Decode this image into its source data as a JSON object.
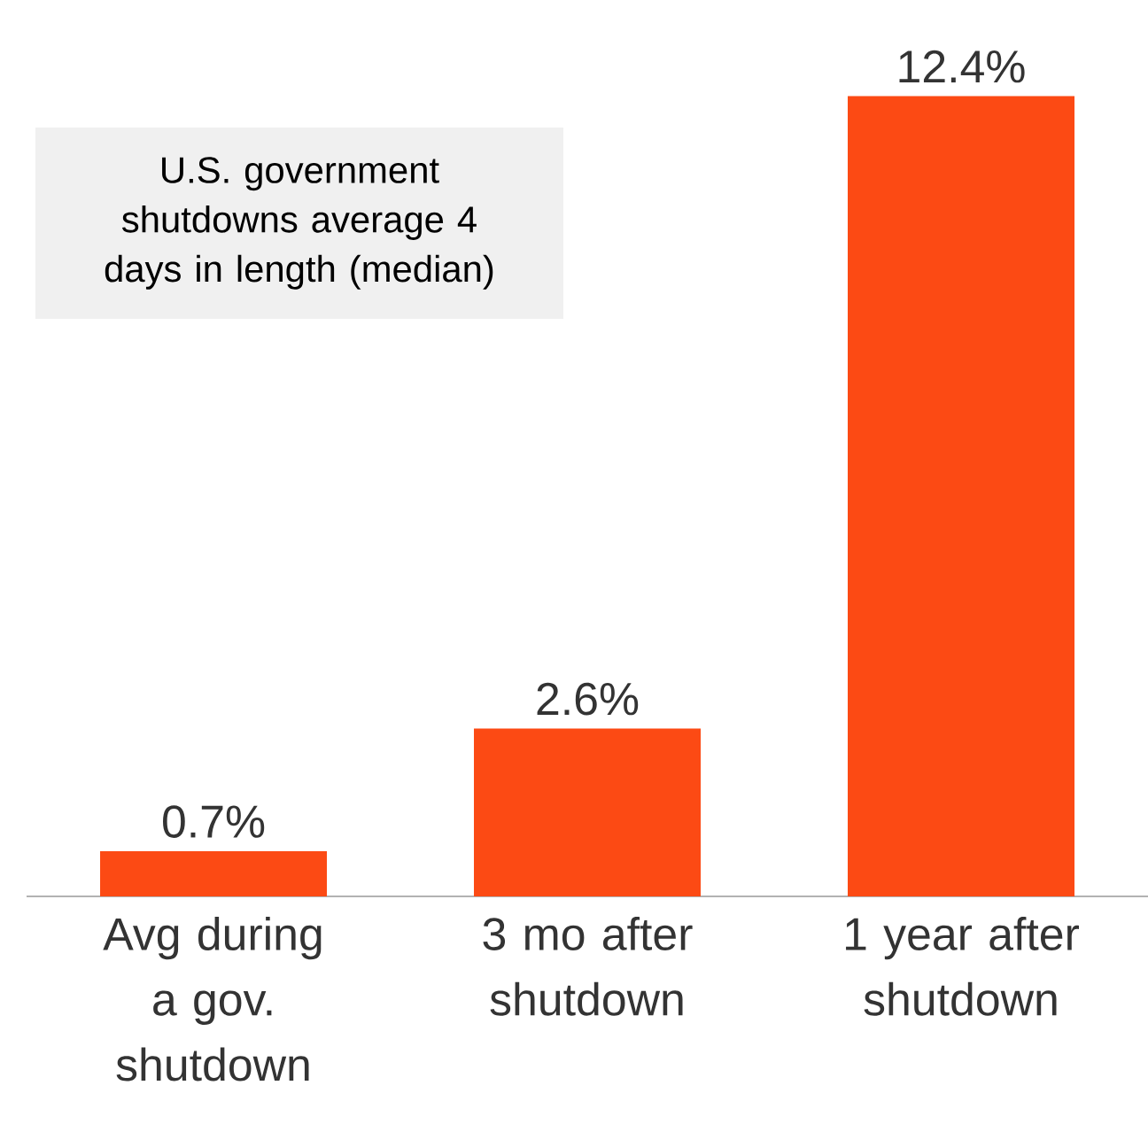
{
  "chart_data": {
    "type": "bar",
    "categories": [
      "Avg during a gov. shutdown",
      "3 mo after shutdown",
      "1 year after shutdown"
    ],
    "values": [
      0.7,
      2.6,
      12.4
    ],
    "value_labels": [
      "0.7%",
      "2.6%",
      "12.4%"
    ],
    "color": "#fc4a14",
    "annotations": [
      "U.S. government shutdowns average 4 days in length (median)"
    ]
  }
}
